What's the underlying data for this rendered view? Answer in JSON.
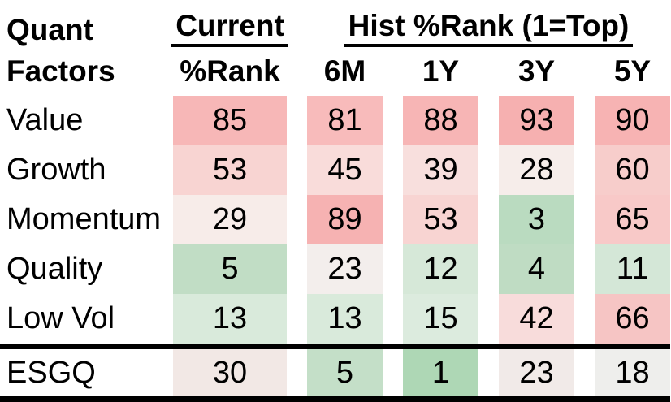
{
  "title": {
    "line1": "Quant",
    "line2": "Factors"
  },
  "group_headers": {
    "current": "Current",
    "hist": "Hist %Rank (1=Top)"
  },
  "col_headers": [
    "%Rank",
    "6M",
    "1Y",
    "3Y",
    "5Y"
  ],
  "col_keys": [
    "current",
    "6m",
    "1y",
    "3y",
    "5y"
  ],
  "rows": [
    {
      "label": "Value",
      "cells": [
        {
          "value": "85",
          "bg": "#f7b7b7"
        },
        {
          "value": "81",
          "bg": "#f8bbbb"
        },
        {
          "value": "88",
          "bg": "#f7b5b5"
        },
        {
          "value": "93",
          "bg": "#f6b0b0"
        },
        {
          "value": "90",
          "bg": "#f7b3b3"
        }
      ]
    },
    {
      "label": "Growth",
      "cells": [
        {
          "value": "53",
          "bg": "#f8d4d2"
        },
        {
          "value": "45",
          "bg": "#f9dcda"
        },
        {
          "value": "39",
          "bg": "#f8dfdd"
        },
        {
          "value": "28",
          "bg": "#f6edea"
        },
        {
          "value": "60",
          "bg": "#f7cdcb"
        }
      ]
    },
    {
      "label": "Momentum",
      "cells": [
        {
          "value": "29",
          "bg": "#f7ece9"
        },
        {
          "value": "89",
          "bg": "#f6b2b2"
        },
        {
          "value": "53",
          "bg": "#f8d4d2"
        },
        {
          "value": "3",
          "bg": "#badbc0"
        },
        {
          "value": "65",
          "bg": "#f8c9c8"
        }
      ]
    },
    {
      "label": "Quality",
      "cells": [
        {
          "value": "5",
          "bg": "#c1ddc5"
        },
        {
          "value": "23",
          "bg": "#f3eeec"
        },
        {
          "value": "12",
          "bg": "#d6e8d8"
        },
        {
          "value": "4",
          "bg": "#bfdcc3"
        },
        {
          "value": "11",
          "bg": "#d4e7d7"
        }
      ]
    },
    {
      "label": "Low Vol",
      "cells": [
        {
          "value": "13",
          "bg": "#d9eadb"
        },
        {
          "value": "13",
          "bg": "#d9eadb"
        },
        {
          "value": "15",
          "bg": "#dcebde"
        },
        {
          "value": "42",
          "bg": "#f8dcdb"
        },
        {
          "value": "66",
          "bg": "#f6c5c4"
        }
      ]
    },
    {
      "label": "ESGQ",
      "is_footer": true,
      "cells": [
        {
          "value": "30",
          "bg": "#f2e8e5"
        },
        {
          "value": "5",
          "bg": "#c4dfc8"
        },
        {
          "value": "1",
          "bg": "#aed7b5"
        },
        {
          "value": "23",
          "bg": "#f1eae8"
        },
        {
          "value": "18",
          "bg": "#eeeeec"
        }
      ]
    }
  ],
  "colors": {
    "high_red": "#f6b0b0",
    "mid_white": "#f6eeec",
    "low_green": "#aed7b5",
    "rule": "#000000",
    "text": "#000000"
  },
  "chart_data": {
    "type": "heatmap",
    "title": "Quant Factors — Current %Rank and Hist %Rank (1=Top)",
    "row_labels": [
      "Value",
      "Growth",
      "Momentum",
      "Quality",
      "Low Vol",
      "ESGQ"
    ],
    "col_labels": [
      "Current %Rank",
      "6M",
      "1Y",
      "3Y",
      "5Y"
    ],
    "values": [
      [
        85,
        81,
        88,
        93,
        90
      ],
      [
        53,
        45,
        39,
        28,
        60
      ],
      [
        29,
        89,
        53,
        3,
        65
      ],
      [
        5,
        23,
        12,
        4,
        11
      ],
      [
        13,
        13,
        15,
        42,
        66
      ],
      [
        30,
        5,
        1,
        23,
        18
      ]
    ],
    "value_range": [
      1,
      100
    ],
    "color_scale": "low values green (good, 1=Top), ~20 white, high values red",
    "legend_position": "none",
    "grid": false
  }
}
